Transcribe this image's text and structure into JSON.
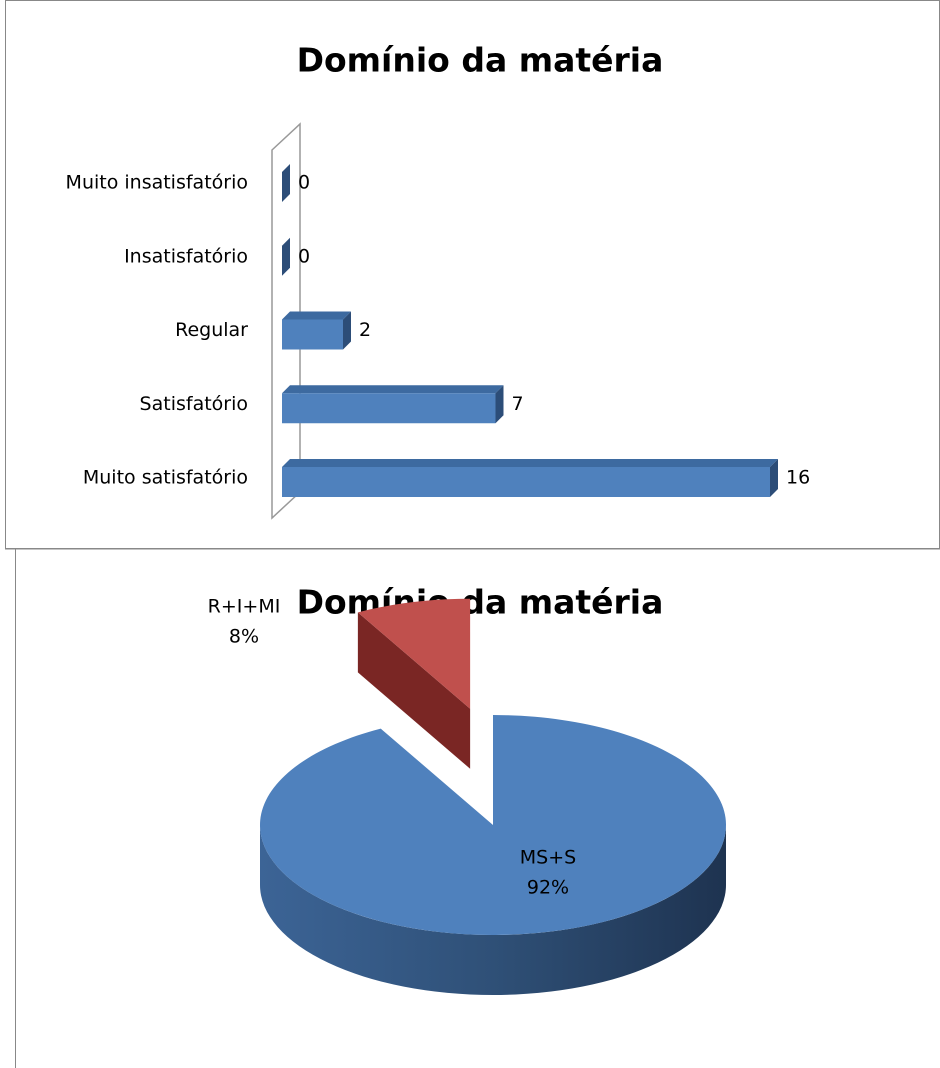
{
  "chart_data": [
    {
      "type": "bar",
      "orientation": "horizontal",
      "title": "Domínio da matéria",
      "categories": [
        "Muito insatisfatório",
        "Insatisfatório",
        "Regular",
        "Satisfatório",
        "Muito satisfatório"
      ],
      "values": [
        0,
        0,
        2,
        7,
        16
      ],
      "color": "#4f81bd"
    },
    {
      "type": "pie",
      "title": "Domínio da matéria",
      "categories": [
        "MS+S",
        "R+I+MI"
      ],
      "values": [
        92,
        8
      ],
      "value_labels": [
        "92%",
        "8%"
      ],
      "colors": [
        "#4f81bd",
        "#c0504d"
      ]
    }
  ]
}
